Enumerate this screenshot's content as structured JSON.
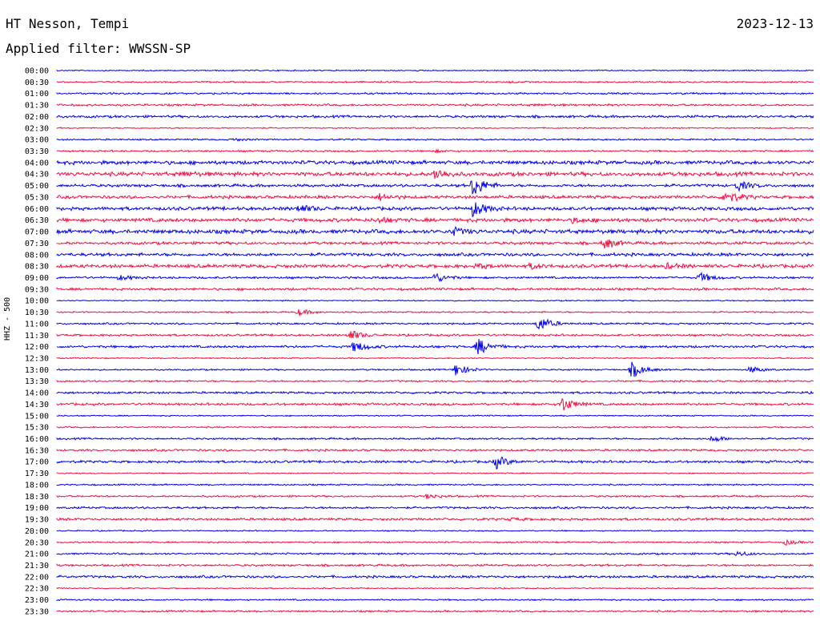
{
  "header": {
    "station": "HT Nesson, Tempi",
    "filter": "Applied filter: WWSSN-SP",
    "date": "2023-12-13"
  },
  "channel_label": "HHZ - 500",
  "colors": {
    "even_trace": "#0000ee",
    "odd_trace": "#ee1144"
  },
  "chart_data": {
    "type": "helicorder",
    "title": "HT Nesson, Tempi",
    "subtitle": "Applied filter: WWSSN-SP",
    "date": "2023-12-13",
    "ylabel": "HHZ - 500",
    "row_interval_minutes": 30,
    "rows": [
      "00:00",
      "00:30",
      "01:00",
      "01:30",
      "02:00",
      "02:30",
      "03:00",
      "03:30",
      "04:00",
      "04:30",
      "05:00",
      "05:30",
      "06:00",
      "06:30",
      "07:00",
      "07:30",
      "08:00",
      "08:30",
      "09:00",
      "09:30",
      "10:00",
      "10:30",
      "11:00",
      "11:30",
      "12:00",
      "12:30",
      "13:00",
      "13:30",
      "14:00",
      "14:30",
      "15:00",
      "15:30",
      "16:00",
      "16:30",
      "17:00",
      "17:30",
      "18:00",
      "18:30",
      "19:00",
      "19:30",
      "20:00",
      "20:30",
      "21:00",
      "21:30",
      "22:00",
      "22:30",
      "23:00",
      "23:30"
    ],
    "row_colors": [
      "blue",
      "red"
    ],
    "events": [
      {
        "row": "00:30",
        "minute": 18,
        "amplitude": 1.0
      },
      {
        "row": "01:30",
        "minute": 19,
        "amplitude": 0.8
      },
      {
        "row": "03:00",
        "minute": 7,
        "amplitude": 1.5
      },
      {
        "row": "03:30",
        "minute": 15,
        "amplitude": 1.2
      },
      {
        "row": "04:30",
        "minute": 15,
        "amplitude": 7
      },
      {
        "row": "04:30",
        "minute": 5,
        "amplitude": 2.5
      },
      {
        "row": "05:00",
        "minute": 27,
        "amplitude": 6
      },
      {
        "row": "05:00",
        "minute": 16.5,
        "amplitude": 14
      },
      {
        "row": "05:30",
        "minute": 26.5,
        "amplitude": 9
      },
      {
        "row": "05:30",
        "minute": 12.8,
        "amplitude": 4
      },
      {
        "row": "06:00",
        "minute": 9.6,
        "amplitude": 5
      },
      {
        "row": "06:00",
        "minute": 16.5,
        "amplitude": 10
      },
      {
        "row": "06:30",
        "minute": 12.8,
        "amplitude": 3
      },
      {
        "row": "06:30",
        "minute": 20.5,
        "amplitude": 3
      },
      {
        "row": "07:00",
        "minute": 15.7,
        "amplitude": 5
      },
      {
        "row": "07:30",
        "minute": 21.7,
        "amplitude": 7
      },
      {
        "row": "08:30",
        "minute": 16.7,
        "amplitude": 3
      },
      {
        "row": "08:30",
        "minute": 18.8,
        "amplitude": 3
      },
      {
        "row": "08:30",
        "minute": 24.2,
        "amplitude": 3
      },
      {
        "row": "09:00",
        "minute": 15.0,
        "amplitude": 6
      },
      {
        "row": "09:00",
        "minute": 2.5,
        "amplitude": 3
      },
      {
        "row": "09:00",
        "minute": 25.5,
        "amplitude": 6
      },
      {
        "row": "10:30",
        "minute": 9.6,
        "amplitude": 4
      },
      {
        "row": "11:00",
        "minute": 19.1,
        "amplitude": 10
      },
      {
        "row": "11:30",
        "minute": 11.6,
        "amplitude": 7
      },
      {
        "row": "12:00",
        "minute": 16.7,
        "amplitude": 10
      },
      {
        "row": "12:00",
        "minute": 11.8,
        "amplitude": 7
      },
      {
        "row": "13:00",
        "minute": 15.8,
        "amplitude": 8
      },
      {
        "row": "13:00",
        "minute": 22.8,
        "amplitude": 10
      },
      {
        "row": "13:00",
        "minute": 27.5,
        "amplitude": 4
      },
      {
        "row": "14:30",
        "minute": 20.0,
        "amplitude": 10
      },
      {
        "row": "16:00",
        "minute": 26.0,
        "amplitude": 4
      },
      {
        "row": "17:00",
        "minute": 17.4,
        "amplitude": 8
      },
      {
        "row": "18:30",
        "minute": 14.7,
        "amplitude": 3
      },
      {
        "row": "19:30",
        "minute": 18.0,
        "amplitude": 1.5
      },
      {
        "row": "20:30",
        "minute": 28.9,
        "amplitude": 3
      },
      {
        "row": "21:00",
        "minute": 27.0,
        "amplitude": 3
      }
    ]
  }
}
